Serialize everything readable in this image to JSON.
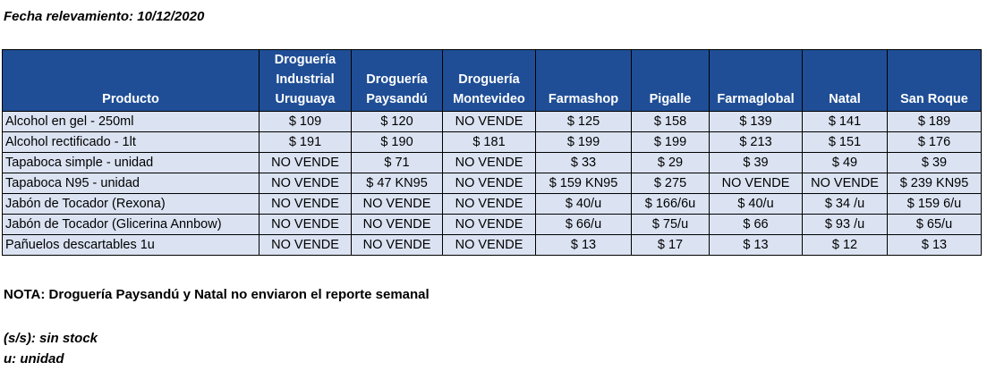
{
  "date_line": "Fecha relevamiento: 10/12/2020",
  "table": {
    "headers": [
      "Producto",
      "Droguería Industrial Uruguaya",
      "Droguería Paysandú",
      "Droguería Montevideo",
      "Farmashop",
      "Pigalle",
      "Farmaglobal",
      "Natal",
      "San Roque"
    ],
    "rows": [
      [
        "Alcohol en gel  - 250ml",
        "$ 109",
        "$ 120",
        "NO VENDE",
        "$ 125",
        "$ 158",
        "$ 139",
        "$ 141",
        "$ 189"
      ],
      [
        "Alcohol rectificado - 1lt",
        "$ 191",
        "$ 190",
        "$ 181",
        "$ 199",
        "$ 199",
        "$ 213",
        "$ 151",
        "$ 176"
      ],
      [
        "Tapaboca simple - unidad",
        "NO VENDE",
        "$ 71",
        "NO VENDE",
        "$ 33",
        "$ 29",
        "$ 39",
        "$ 49",
        "$ 39"
      ],
      [
        "Tapaboca N95 - unidad",
        "NO VENDE",
        "$ 47  KN95",
        "NO VENDE",
        "$ 159  KN95",
        "$ 275",
        "NO VENDE",
        "NO VENDE",
        "$ 239  KN95"
      ],
      [
        "Jabón de Tocador (Rexona)",
        "NO VENDE",
        "NO VENDE",
        "NO VENDE",
        "$ 40/u",
        "$ 166/6u",
        "$ 40/u",
        "$ 34 /u",
        "$ 159 6/u"
      ],
      [
        "Jabón de Tocador (Glicerina Annbow)",
        "NO VENDE",
        "NO VENDE",
        "NO VENDE",
        "$ 66/u",
        "$ 75/u",
        "$ 66",
        "$ 93 /u",
        "$ 65/u"
      ],
      [
        "Pañuelos descartables 1u",
        "NO VENDE",
        "NO VENDE",
        "NO VENDE",
        "$ 13",
        "$ 17",
        "$ 13",
        "$ 12",
        "$ 13"
      ]
    ]
  },
  "note": "NOTA: Droguería Paysandú y Natal no enviaron el reporte semanal",
  "legend": {
    "sin_stock": "(s/s): sin stock",
    "unidad": "u: unidad"
  },
  "colors": {
    "header_bg": "#1f4e96",
    "cell_bg": "#dbe3f2"
  }
}
